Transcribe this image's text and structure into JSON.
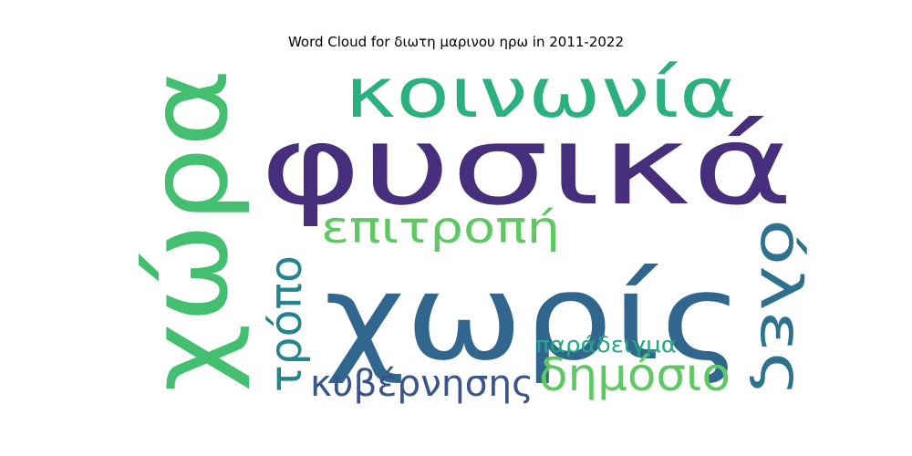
{
  "chart_data": {
    "type": "wordcloud",
    "title": "Word Cloud for διωτη μαρινου ηρω in 2011-2022",
    "words": [
      {
        "text": "φυσικά",
        "color": "#472f7d"
      },
      {
        "text": "χώρα",
        "color": "#44bf70"
      },
      {
        "text": "χωρίς",
        "color": "#31678e"
      },
      {
        "text": "κοινωνία",
        "color": "#2bb07f"
      },
      {
        "text": "επιτροπή",
        "color": "#5ec962"
      },
      {
        "text": "όλες",
        "color": "#2d718e"
      },
      {
        "text": "τρόπο",
        "color": "#25858e"
      },
      {
        "text": "κυβέρνησης",
        "color": "#3a548c"
      },
      {
        "text": "δημόσιο",
        "color": "#5ec962"
      },
      {
        "text": "παράδειγμα",
        "color": "#22a884"
      }
    ]
  }
}
